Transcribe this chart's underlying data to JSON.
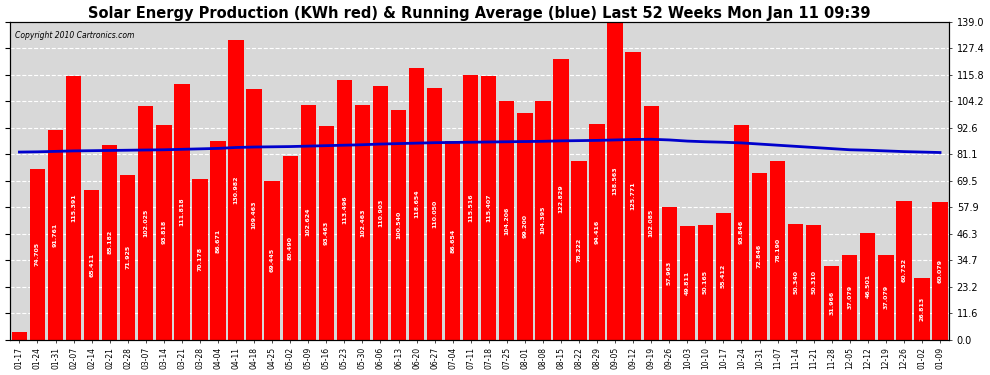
{
  "title": "Solar Energy Production (KWh red) & Running Average (blue) Last 52 Weeks Mon Jan 11 09:39",
  "copyright": "Copyright 2010 Cartronics.com",
  "bar_color": "#ff0000",
  "avg_line_color": "#0000cc",
  "background_color": "#ffffff",
  "plot_bg_color": "#d8d8d8",
  "grid_color": "#ffffff",
  "categories": [
    "01-17",
    "01-24",
    "01-31",
    "02-07",
    "02-14",
    "02-21",
    "02-28",
    "03-07",
    "03-14",
    "03-21",
    "03-28",
    "04-04",
    "04-11",
    "04-18",
    "04-25",
    "05-02",
    "05-09",
    "05-16",
    "05-23",
    "05-30",
    "06-06",
    "06-13",
    "06-20",
    "06-27",
    "07-04",
    "07-11",
    "07-18",
    "07-25",
    "08-01",
    "08-08",
    "08-15",
    "08-22",
    "08-29",
    "09-05",
    "09-12",
    "09-19",
    "09-26",
    "10-03",
    "10-10",
    "10-17",
    "10-24",
    "10-31",
    "11-07",
    "11-14",
    "11-21",
    "11-28",
    "12-05",
    "12-12",
    "12-19",
    "12-26",
    "01-02",
    "01-09"
  ],
  "values": [
    3.45,
    74.705,
    91.761,
    115.391,
    65.411,
    85.182,
    71.925,
    102.025,
    93.818,
    111.818,
    70.178,
    86.671,
    130.982,
    109.463,
    69.445,
    80.49,
    102.624,
    93.463,
    113.496,
    102.463,
    110.903,
    100.54,
    118.654,
    110.05,
    86.654,
    115.516,
    115.407,
    104.206,
    99.2,
    104.395,
    122.829,
    78.222,
    94.416,
    138.563,
    125.771,
    102.085,
    57.963,
    49.811,
    50.165,
    55.412,
    93.846,
    72.846,
    78.19,
    50.34,
    50.31,
    31.966,
    37.079,
    46.501,
    37.079,
    60.732,
    26.813,
    60.079
  ],
  "running_avg": [
    82.0,
    82.1,
    82.3,
    82.5,
    82.6,
    82.7,
    82.8,
    82.9,
    83.0,
    83.2,
    83.4,
    83.6,
    84.0,
    84.2,
    84.3,
    84.4,
    84.6,
    84.8,
    85.0,
    85.2,
    85.5,
    85.7,
    85.9,
    86.1,
    86.2,
    86.3,
    86.4,
    86.5,
    86.6,
    86.7,
    86.9,
    87.0,
    87.1,
    87.3,
    87.5,
    87.6,
    87.3,
    86.8,
    86.5,
    86.3,
    86.0,
    85.5,
    85.0,
    84.5,
    84.0,
    83.5,
    83.0,
    82.8,
    82.5,
    82.2,
    82.0,
    81.8
  ],
  "ylabel_right": [
    "0.0",
    "11.6",
    "23.2",
    "34.7",
    "46.3",
    "57.9",
    "69.5",
    "81.1",
    "92.6",
    "104.2",
    "115.8",
    "127.4",
    "139.0"
  ],
  "ytick_vals": [
    0.0,
    11.6,
    23.2,
    34.7,
    46.3,
    57.9,
    69.5,
    81.1,
    92.6,
    104.2,
    115.8,
    127.4,
    139.0
  ],
  "ymin": 0,
  "ymax": 139.0,
  "text_color_in_bar": "#ffffff",
  "bar_value_fontsize": 4.5,
  "xlabel_fontsize": 5.5,
  "title_fontsize": 10.5
}
